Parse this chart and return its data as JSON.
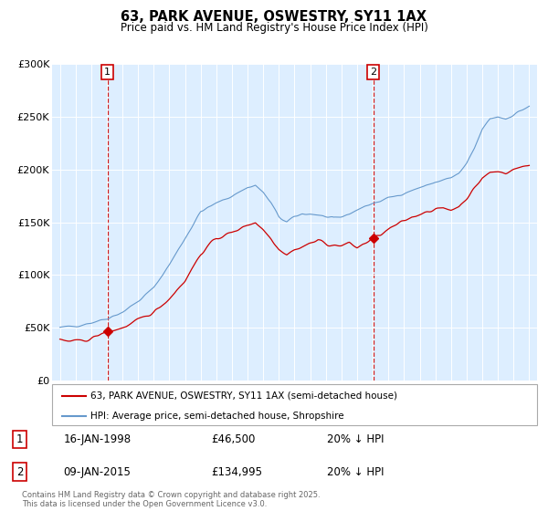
{
  "title": "63, PARK AVENUE, OSWESTRY, SY11 1AX",
  "subtitle": "Price paid vs. HM Land Registry's House Price Index (HPI)",
  "legend_line1": "63, PARK AVENUE, OSWESTRY, SY11 1AX (semi-detached house)",
  "legend_line2": "HPI: Average price, semi-detached house, Shropshire",
  "annotation1_date": "16-JAN-1998",
  "annotation1_price": "£46,500",
  "annotation1_hpi": "20% ↓ HPI",
  "annotation2_date": "09-JAN-2015",
  "annotation2_price": "£134,995",
  "annotation2_hpi": "20% ↓ HPI",
  "footer": "Contains HM Land Registry data © Crown copyright and database right 2025.\nThis data is licensed under the Open Government Licence v3.0.",
  "sale1_x": 1998.04,
  "sale1_y": 46500,
  "sale2_x": 2015.03,
  "sale2_y": 134995,
  "price_color": "#cc0000",
  "hpi_color": "#6699cc",
  "vline_color": "#cc0000",
  "bg_color": "#ddeeff",
  "ylim": [
    0,
    300000
  ],
  "xlim_start": 1994.5,
  "xlim_end": 2025.5,
  "yticks": [
    0,
    50000,
    100000,
    150000,
    200000,
    250000,
    300000
  ],
  "ytick_labels": [
    "£0",
    "£50K",
    "£100K",
    "£150K",
    "£200K",
    "£250K",
    "£300K"
  ],
  "xticks": [
    1995,
    1996,
    1997,
    1998,
    1999,
    2000,
    2001,
    2002,
    2003,
    2004,
    2005,
    2006,
    2007,
    2008,
    2009,
    2010,
    2011,
    2012,
    2013,
    2014,
    2015,
    2016,
    2017,
    2018,
    2019,
    2020,
    2021,
    2022,
    2023,
    2024,
    2025
  ]
}
